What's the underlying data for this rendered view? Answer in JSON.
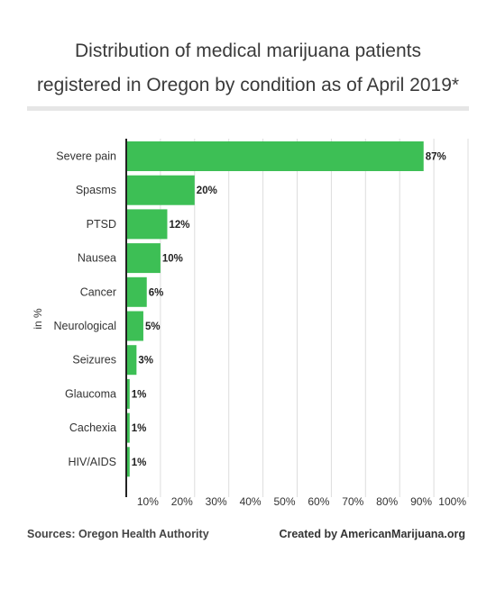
{
  "header": {
    "title_line1": "Distribution of medical marijuana patients",
    "title_line2": "registered in Oregon by condition as of April 2019*"
  },
  "footer": {
    "sources": "Sources: Oregon Health Authority",
    "credit": "Created by AmericanMarijuana.org"
  },
  "chart_data": {
    "type": "bar",
    "orientation": "horizontal",
    "title": "Distribution of medical marijuana patients registered in Oregon by condition as of April 2019*",
    "ylabel": "in %",
    "categories": [
      "Severe pain",
      "Spasms",
      "PTSD",
      "Nausea",
      "Cancer",
      "Neurological",
      "Seizures",
      "Glaucoma",
      "Cachexia",
      "HIV/AIDS"
    ],
    "values": [
      87,
      20,
      12,
      10,
      6,
      5,
      3,
      1,
      1,
      1
    ],
    "value_labels": [
      "87%",
      "20%",
      "12%",
      "10%",
      "6%",
      "5%",
      "3%",
      "1%",
      "1%",
      "1%"
    ],
    "xlim": [
      0,
      100
    ],
    "xticks": [
      10,
      20,
      30,
      40,
      50,
      60,
      70,
      80,
      90,
      100
    ],
    "xtick_labels": [
      "10%",
      "20%",
      "30%",
      "40%",
      "50%",
      "60%",
      "70%",
      "80%",
      "90%",
      "100%"
    ],
    "grid": true,
    "bar_color": "#3dbf55",
    "grid_color": "#dddddd"
  }
}
